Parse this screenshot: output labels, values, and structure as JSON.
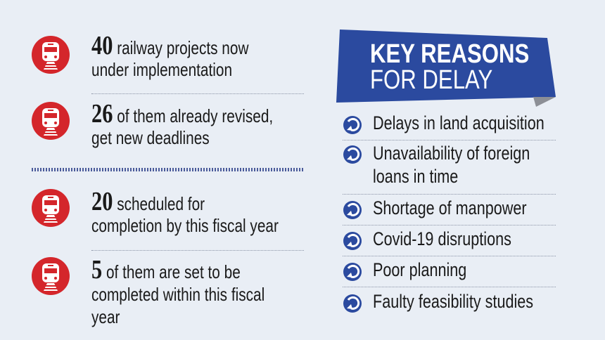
{
  "colors": {
    "background": "#e9eef5",
    "train_icon": "#d4262b",
    "banner": "#2b4a9f",
    "reason_icon": "#2b4a9f"
  },
  "stats": [
    {
      "number": "40",
      "lines": [
        "railway projects now",
        "under implementation"
      ],
      "icon": "train-icon"
    },
    {
      "number": "26",
      "lines": [
        "of them already revised,",
        "get new deadlines"
      ],
      "icon": "train-icon"
    },
    {
      "number": "20",
      "lines": [
        "scheduled for",
        "completion by this fiscal year"
      ],
      "icon": "train-icon"
    },
    {
      "number": "5",
      "lines": [
        "of them are set to be",
        "completed within this fiscal",
        "year"
      ],
      "icon": "train-icon"
    }
  ],
  "banner": {
    "line1": "KEY REASONS",
    "line2": "FOR DELAY"
  },
  "reasons": [
    {
      "lines": [
        "Delays in land acquisition"
      ],
      "icon": "arrow-circle-icon"
    },
    {
      "lines": [
        "Unavailability of foreign",
        "loans in time"
      ],
      "icon": "arrow-circle-icon"
    },
    {
      "lines": [
        "Shortage of manpower"
      ],
      "icon": "arrow-circle-icon"
    },
    {
      "lines": [
        "Covid-19 disruptions"
      ],
      "icon": "arrow-circle-icon"
    },
    {
      "lines": [
        "Poor planning"
      ],
      "icon": "arrow-circle-icon"
    },
    {
      "lines": [
        "Faulty feasibility studies"
      ],
      "icon": "arrow-circle-icon"
    }
  ]
}
